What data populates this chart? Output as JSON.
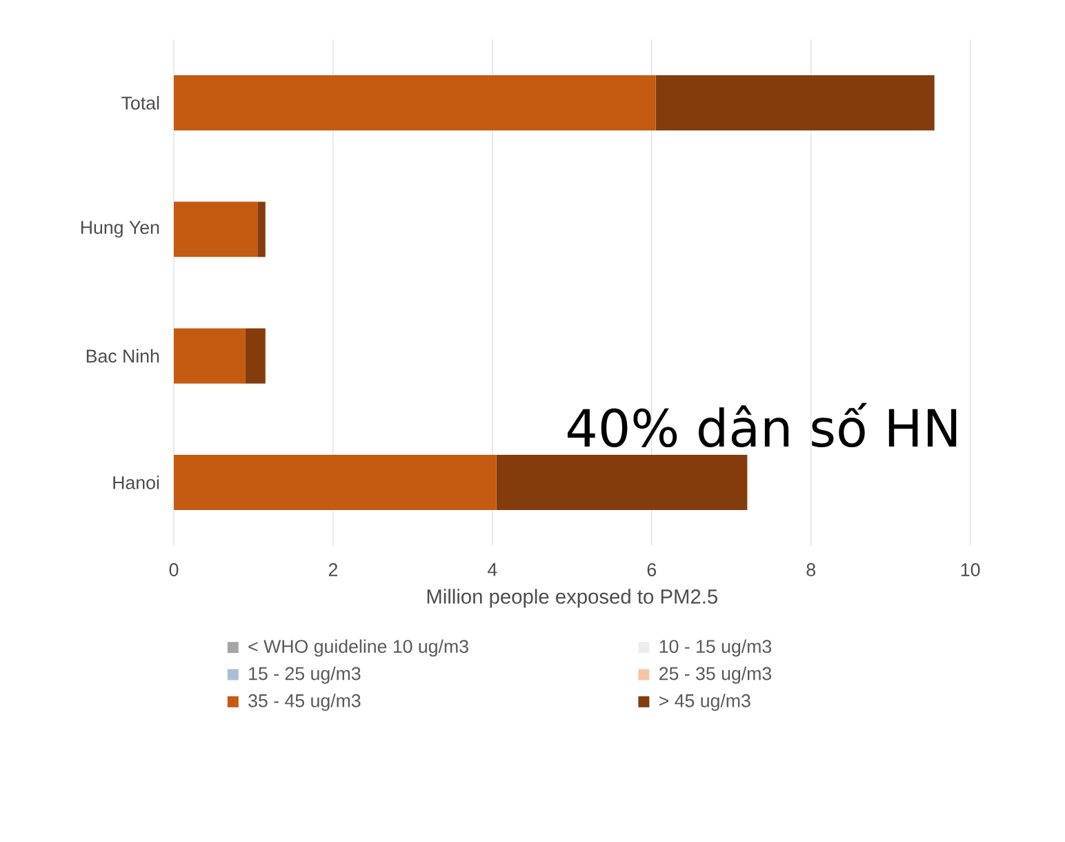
{
  "chart_data": {
    "type": "bar",
    "orientation": "horizontal",
    "stacked": true,
    "categories": [
      "Total",
      "Hung Yen",
      "Bac Ninh",
      "Hanoi"
    ],
    "series": [
      {
        "name": "< WHO guideline 10 ug/m3",
        "color": "#a5a5a5",
        "values": [
          0,
          0,
          0,
          0
        ]
      },
      {
        "name": "10 - 15 ug/m3",
        "color": "#ededed",
        "values": [
          0,
          0,
          0,
          0
        ]
      },
      {
        "name": "15 - 25 ug/m3",
        "color": "#a9bfd6",
        "values": [
          0,
          0,
          0,
          0
        ]
      },
      {
        "name": "25 - 35 ug/m3",
        "color": "#f4c7a4",
        "values": [
          0,
          0,
          0,
          0
        ]
      },
      {
        "name": "35 - 45 ug/m3",
        "color": "#c55a11",
        "values": [
          6.05,
          1.05,
          0.9,
          4.05
        ]
      },
      {
        "name": "> 45 ug/m3",
        "color": "#843c0c",
        "values": [
          3.5,
          0.1,
          0.25,
          3.15
        ]
      }
    ],
    "xlabel": "Million people exposed to PM2.5",
    "xlim": [
      0,
      10
    ],
    "xticks": [
      0,
      2,
      4,
      6,
      8,
      10
    ],
    "grid": "x",
    "legend": "bottom",
    "annotations": [
      "40% dân số HN"
    ]
  }
}
